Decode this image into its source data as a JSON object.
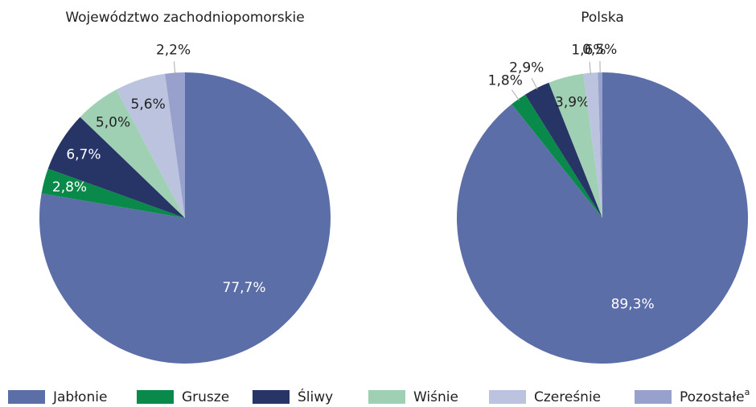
{
  "chart_data": [
    {
      "type": "pie",
      "title": "Województwo zachodniopomorskie",
      "values": [
        77.7,
        2.8,
        6.7,
        5.0,
        5.6,
        2.2
      ],
      "value_labels": [
        "77,7%",
        "2,8%",
        "6,7%",
        "5,0%",
        "5,6%",
        "2,2%"
      ]
    },
    {
      "type": "pie",
      "title": "Polska",
      "values": [
        89.3,
        1.8,
        2.9,
        3.9,
        1.6,
        0.5
      ],
      "value_labels": [
        "89,3%",
        "1,8%",
        "2,9%",
        "3,9%",
        "1,6%",
        "0,5%"
      ]
    }
  ],
  "legend": {
    "categories": [
      "Jabłonie",
      "Grusze",
      "Śliwy",
      "Wiśnie",
      "Czereśnie",
      "Pozostałe"
    ],
    "colors": [
      "#5b6ea8",
      "#0a8a4a",
      "#263566",
      "#9fd0b4",
      "#bcc3df",
      "#97a1cb"
    ],
    "footnote_mark": "a"
  }
}
